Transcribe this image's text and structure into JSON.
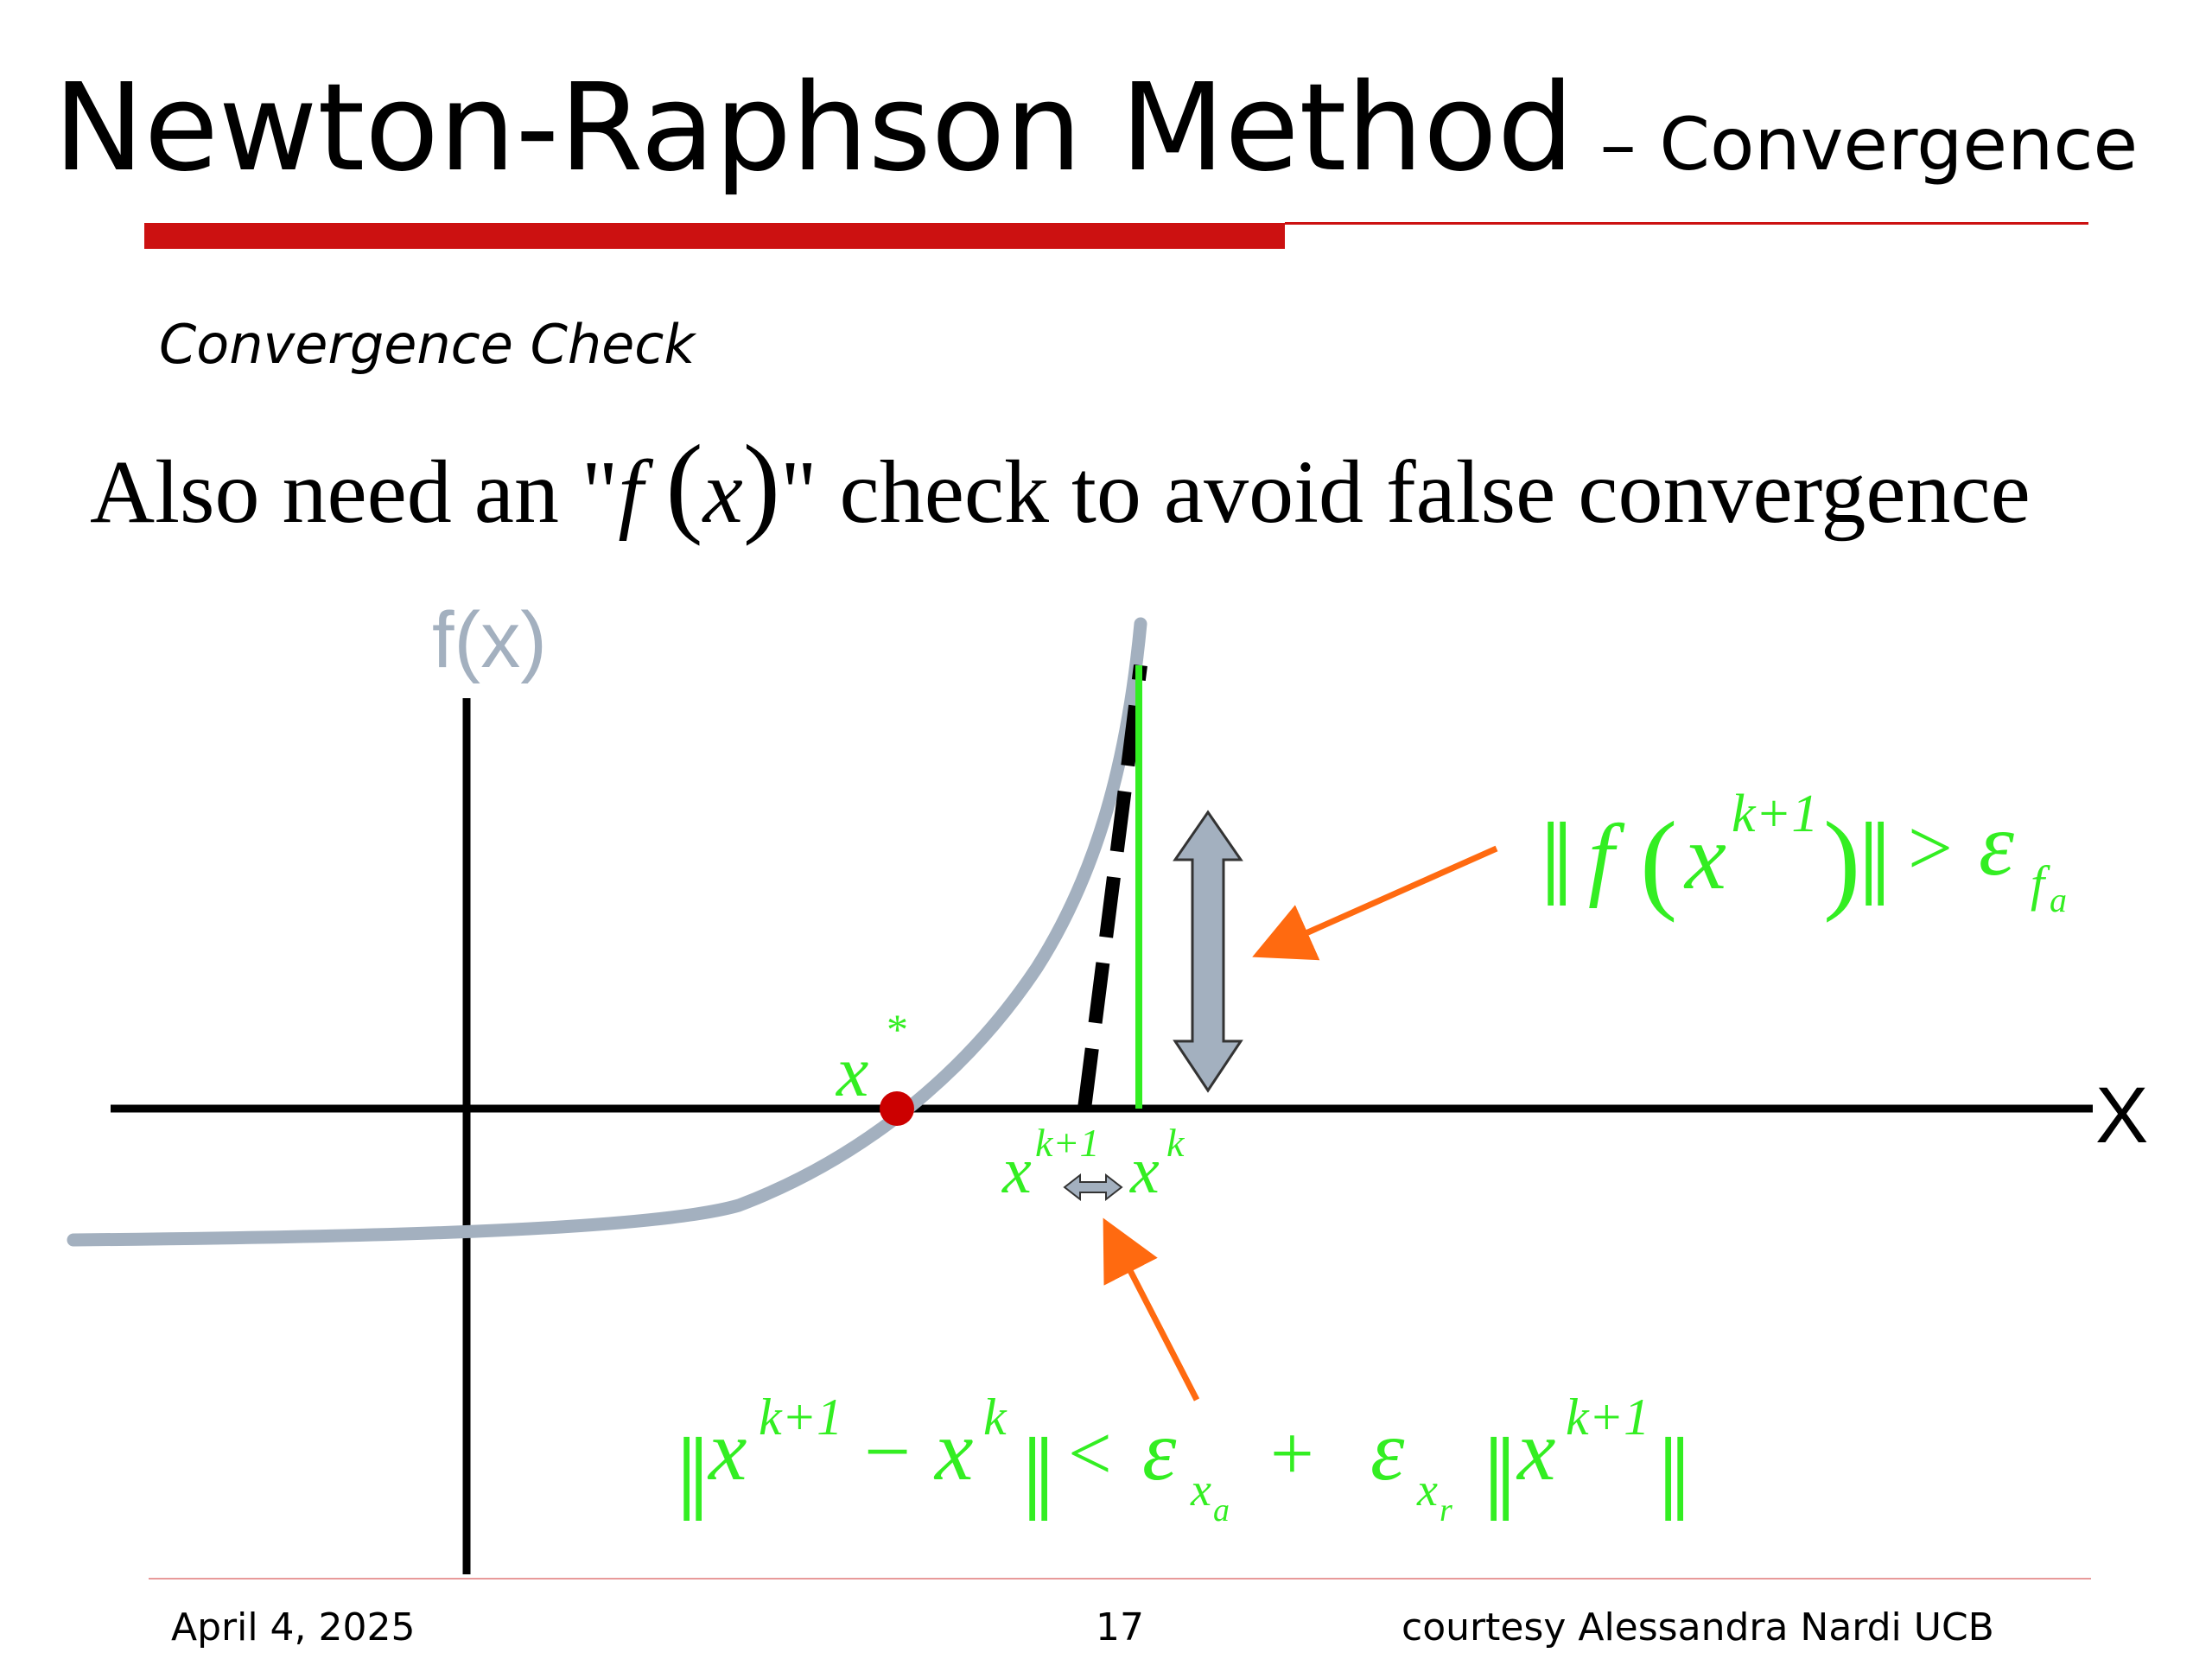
{
  "slide": {
    "title": "Newton-Raphson Method",
    "title_suffix": "– Convergence",
    "subtitle": "Convergence Check",
    "statement": {
      "before": "Also need an \"",
      "f": "f",
      "lparen": "(",
      "x": "x",
      "rparen": ")",
      "after": "\" check to avoid false convergence"
    }
  },
  "diagram": {
    "y_axis_label": "f(x)",
    "x_axis_label": "X",
    "root_label": "x",
    "root_sup": "*",
    "xk1_label": "x",
    "xk1_sup": "k+1",
    "xk_label": "x",
    "xk_sup": "k",
    "f_check": {
      "bars_open": "‖",
      "f": "f",
      "lparen": "(",
      "x": "x",
      "sup": "k+1",
      "rparen": ")",
      "bars_close": "‖",
      "op": ">",
      "eps": "ε",
      "sub": "f",
      "subsub": "a"
    },
    "x_check": {
      "bars1": "‖",
      "x1": "x",
      "sup1": "k+1",
      "minus": "−",
      "x2": "x",
      "sup2": "k",
      "bars2": "‖",
      "lt": "<",
      "eps1": "ε",
      "sub1": "x",
      "subsub1": "a",
      "plus": "+",
      "eps2": "ε",
      "sub2": "x",
      "subsub2": "r",
      "bars3": "‖",
      "x3": "x",
      "sup3": "k+1",
      "bars4": "‖"
    },
    "colors": {
      "curve": "#a3b0bf",
      "green": "#33ee22",
      "orange": "#ff6a10",
      "root_dot": "#cc0000",
      "red_bar": "#cc1111"
    }
  },
  "footer": {
    "date": "April 4, 2025",
    "page": "17",
    "credit": "courtesy Alessandra Nardi UCB"
  }
}
